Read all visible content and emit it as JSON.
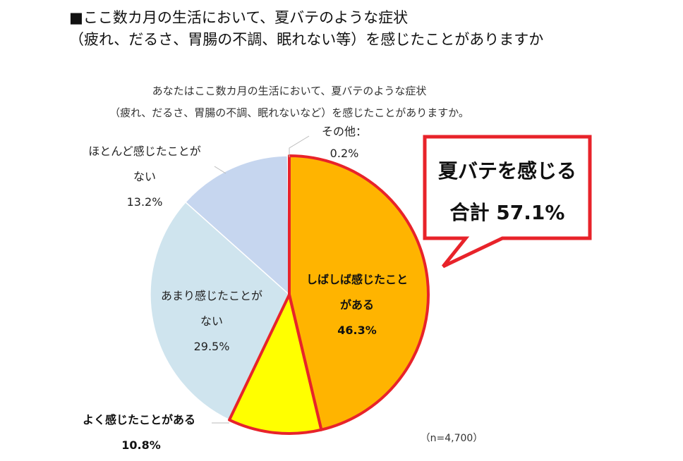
{
  "header": {
    "line1": "■ここ数カ月の生活において、夏バテのような症状",
    "line2": "（疲れ、だるさ、胃腸の不調、眠れない等）を感じたことがありますか"
  },
  "question": {
    "line1": "あなたはここ数カ月の生活において、夏バテのような症状",
    "line2": "（疲れ、だるさ、胃腸の不調、眠れないなど）を感じたことがありますか。"
  },
  "sample_note": "（n=4,700）",
  "callout": {
    "line1": "夏バテを感じる",
    "line2": "合計 57.1%",
    "border_color": "#e8232a"
  },
  "chart_data": {
    "type": "pie",
    "start_angle_deg": 0,
    "direction": "clockwise",
    "slices": [
      {
        "label_lines": [
          "しばしば感じたこと",
          "がある"
        ],
        "value": 46.3,
        "value_text": "46.3%",
        "color": "#ffb400",
        "highlight": true
      },
      {
        "label_lines": [
          "よく感じたことがある"
        ],
        "value": 10.8,
        "value_text": "10.8%",
        "color": "#ffff00",
        "highlight": true
      },
      {
        "label_lines": [
          "あまり感じたことが",
          "ない"
        ],
        "value": 29.5,
        "value_text": "29.5%",
        "color": "#cfe4ee",
        "highlight": false
      },
      {
        "label_lines": [
          "ほとんど感じたことが",
          "ない"
        ],
        "value": 13.2,
        "value_text": "13.2%",
        "color": "#c6d6ef",
        "highlight": false
      },
      {
        "label_lines": [
          "その他："
        ],
        "value": 0.2,
        "value_text": "0.2%",
        "color": "#d9d9d9",
        "highlight": false
      }
    ],
    "highlight_border_color": "#e8232a"
  }
}
